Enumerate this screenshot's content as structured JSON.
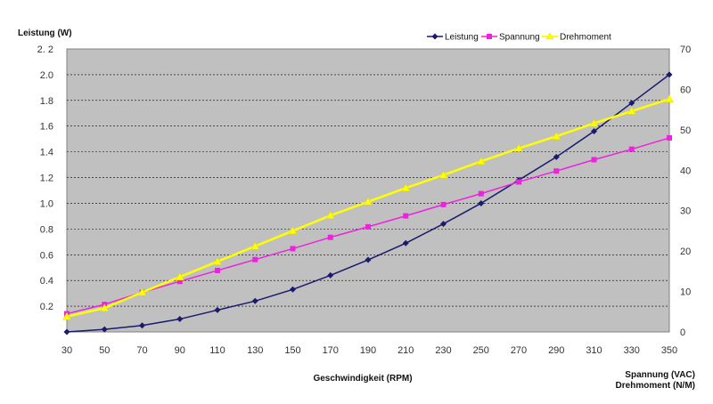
{
  "chart_data": {
    "type": "line",
    "y_left_label": "Leistung (W)",
    "xlabel": "Geschwindigkeit (RPM)",
    "y_right_label_1": "Spannung (VAC)",
    "y_right_label_2": "Drehmoment (N/M)",
    "x": [
      30,
      50,
      70,
      90,
      110,
      130,
      150,
      170,
      190,
      210,
      230,
      250,
      270,
      290,
      310,
      330,
      350
    ],
    "x_tick_labels": [
      "30",
      "50",
      "70",
      "90",
      "110",
      "130",
      "150",
      "170",
      "190",
      "210",
      "230",
      "250",
      "270",
      "290",
      "310",
      "330",
      "350"
    ],
    "xlim": [
      30,
      350
    ],
    "y_left_lim": [
      0,
      2.2
    ],
    "y_left_ticks": [
      0.2,
      0.4,
      0.6,
      0.8,
      1.0,
      1.2,
      1.4,
      1.6,
      1.8,
      2.0,
      2.2
    ],
    "y_left_tick_labels": [
      "0.2",
      "0.4",
      "0.6",
      "0.8",
      "1.0",
      "1.2",
      "1.4",
      "1.6",
      "1.8",
      "2.0",
      "2. 2"
    ],
    "y_right_lim": [
      0,
      70
    ],
    "y_right_ticks": [
      0,
      10,
      20,
      30,
      40,
      50,
      60,
      70
    ],
    "y_right_tick_labels": [
      "0",
      "10",
      "20",
      "30",
      "40",
      "50",
      "60",
      "70"
    ],
    "grid": true,
    "legend_position": "top-right",
    "series": [
      {
        "name": "Leistung",
        "axis": "left",
        "color": "#1a1a6e",
        "marker": "diamond",
        "values": [
          0.0,
          0.02,
          0.05,
          0.1,
          0.17,
          0.24,
          0.33,
          0.44,
          0.56,
          0.69,
          0.84,
          1.0,
          1.18,
          1.36,
          1.56,
          1.78,
          2.0
        ]
      },
      {
        "name": "Spannung",
        "axis": "right",
        "color": "#ee22dd",
        "marker": "square",
        "values": [
          4.5,
          6.8,
          9.8,
          12.5,
          15.2,
          17.9,
          20.6,
          23.4,
          26.0,
          28.7,
          31.5,
          34.2,
          37.1,
          39.8,
          42.6,
          45.2,
          48.0
        ]
      },
      {
        "name": "Drehmoment",
        "axis": "right",
        "color": "#ffff00",
        "marker": "triangle",
        "values": [
          3.8,
          5.9,
          9.8,
          13.6,
          17.4,
          21.2,
          25.0,
          28.8,
          32.2,
          35.6,
          38.8,
          42.2,
          45.4,
          48.4,
          51.6,
          54.6,
          57.6
        ]
      }
    ]
  }
}
